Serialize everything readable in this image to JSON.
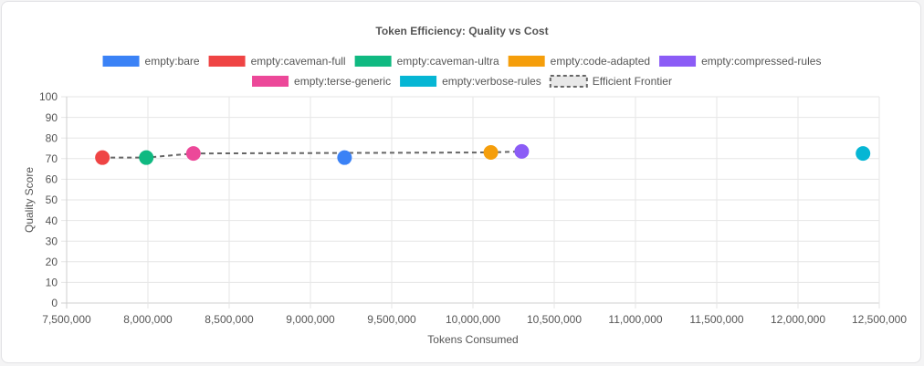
{
  "chart_data": {
    "type": "scatter",
    "title": "Token Efficiency: Quality vs Cost",
    "xlabel": "Tokens Consumed",
    "ylabel": "Quality Score",
    "xlim": [
      7500000,
      12500000
    ],
    "ylim": [
      0,
      100
    ],
    "x_ticks": [
      "7,500,000",
      "8,000,000",
      "8,500,000",
      "9,000,000",
      "9,500,000",
      "10,000,000",
      "10,500,000",
      "11,000,000",
      "11,500,000",
      "12,000,000",
      "12,500,000"
    ],
    "y_ticks": [
      "0",
      "10",
      "20",
      "30",
      "40",
      "50",
      "60",
      "70",
      "80",
      "90",
      "100"
    ],
    "grid": true,
    "legend_position": "top",
    "series": [
      {
        "name": "empty:bare",
        "color": "#3b82f6",
        "x": 9210000,
        "y": 70.5
      },
      {
        "name": "empty:caveman-full",
        "color": "#ef4444",
        "x": 7720000,
        "y": 70.5
      },
      {
        "name": "empty:caveman-ultra",
        "color": "#10b981",
        "x": 7990000,
        "y": 70.5
      },
      {
        "name": "empty:code-adapted",
        "color": "#f59e0b",
        "x": 10110000,
        "y": 73
      },
      {
        "name": "empty:compressed-rules",
        "color": "#8b5cf6",
        "x": 10300000,
        "y": 73.5
      },
      {
        "name": "empty:terse-generic",
        "color": "#ec4899",
        "x": 8280000,
        "y": 72.5
      },
      {
        "name": "empty:verbose-rules",
        "color": "#06b6d4",
        "x": 12400000,
        "y": 72.5
      }
    ],
    "frontier": {
      "name": "Efficient Frontier",
      "color": "#666666",
      "points": [
        [
          7720000,
          70.5
        ],
        [
          7990000,
          70.5
        ],
        [
          8280000,
          72.5
        ],
        [
          10110000,
          73
        ],
        [
          10300000,
          73.5
        ]
      ]
    }
  }
}
